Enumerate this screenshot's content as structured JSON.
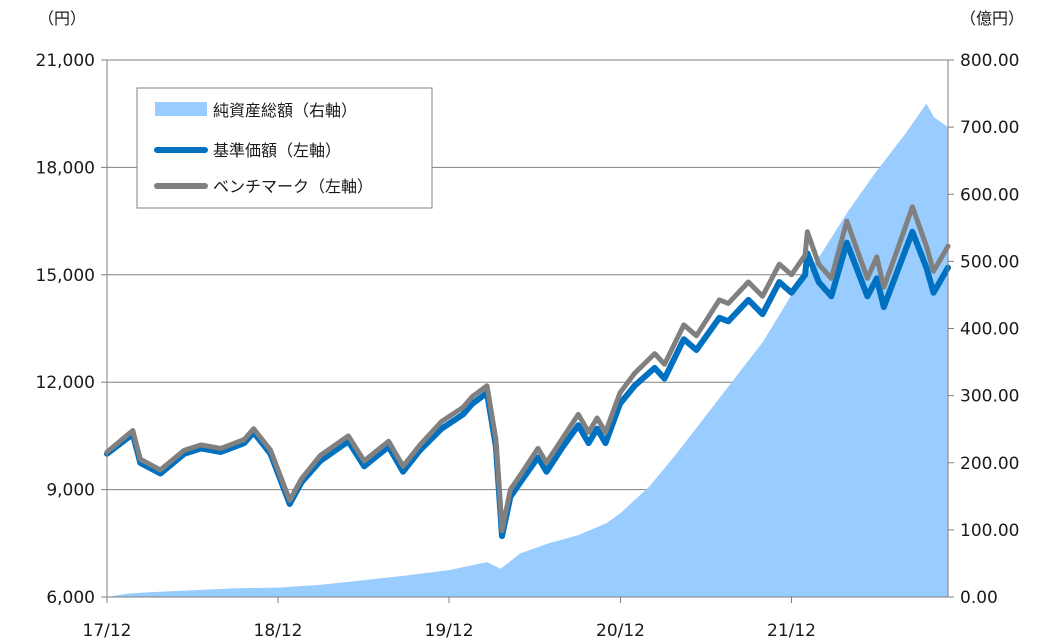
{
  "chart_data": {
    "type": "line",
    "title": "",
    "y_left": {
      "unit_label": "（円）",
      "ylim": [
        6000,
        21000
      ],
      "ticks": [
        6000,
        9000,
        12000,
        15000,
        18000,
        21000
      ],
      "tick_labels": [
        "6,000",
        "9,000",
        "12,000",
        "15,000",
        "18,000",
        "21,000"
      ]
    },
    "y_right": {
      "unit_label": "（億円）",
      "ylim": [
        0,
        800
      ],
      "ticks": [
        0,
        100,
        200,
        300,
        400,
        500,
        600,
        700,
        800
      ],
      "tick_labels": [
        "0.00",
        "100.00",
        "200.00",
        "300.00",
        "400.00",
        "500.00",
        "600.00",
        "700.00",
        "800.00"
      ]
    },
    "x_axis": {
      "start": "2017-12-01",
      "end": "2022-10-31",
      "ticks": [
        "2017-12-01",
        "2018-12-01",
        "2019-12-01",
        "2020-12-01",
        "2021-12-01"
      ],
      "tick_labels": [
        "17/12",
        "18/12",
        "19/12",
        "20/12",
        "21/12"
      ]
    },
    "grid": true,
    "legend_position": "top-left",
    "colors": {
      "net_assets": "#99ccff",
      "nav": "#0070c0",
      "benchmark": "#808080",
      "grid": "#808080",
      "axis": "#808080"
    },
    "series": [
      {
        "name": "純資産総額（右軸）",
        "axis": "right",
        "kind": "area",
        "points": [
          [
            "2017-12-01",
            0
          ],
          [
            "2018-01-15",
            5
          ],
          [
            "2018-03-01",
            7
          ],
          [
            "2018-06-01",
            10
          ],
          [
            "2018-09-01",
            13
          ],
          [
            "2018-12-01",
            14
          ],
          [
            "2019-03-01",
            18
          ],
          [
            "2019-06-01",
            25
          ],
          [
            "2019-09-01",
            32
          ],
          [
            "2019-12-01",
            40
          ],
          [
            "2020-02-20",
            52
          ],
          [
            "2020-03-20",
            42
          ],
          [
            "2020-05-01",
            65
          ],
          [
            "2020-07-01",
            80
          ],
          [
            "2020-09-01",
            92
          ],
          [
            "2020-11-01",
            110
          ],
          [
            "2020-12-01",
            125
          ],
          [
            "2021-02-01",
            165
          ],
          [
            "2021-04-01",
            215
          ],
          [
            "2021-06-01",
            270
          ],
          [
            "2021-08-01",
            325
          ],
          [
            "2021-10-01",
            380
          ],
          [
            "2021-12-01",
            450
          ],
          [
            "2022-02-01",
            510
          ],
          [
            "2022-04-01",
            575
          ],
          [
            "2022-06-01",
            635
          ],
          [
            "2022-08-01",
            690
          ],
          [
            "2022-09-15",
            735
          ],
          [
            "2022-10-01",
            715
          ],
          [
            "2022-10-31",
            700
          ]
        ]
      },
      {
        "name": "基準価額（左軸）",
        "axis": "left",
        "kind": "line",
        "points": [
          [
            "2017-12-01",
            10000
          ],
          [
            "2018-01-25",
            10550
          ],
          [
            "2018-02-10",
            9750
          ],
          [
            "2018-03-25",
            9450
          ],
          [
            "2018-05-15",
            10000
          ],
          [
            "2018-06-20",
            10150
          ],
          [
            "2018-08-01",
            10050
          ],
          [
            "2018-09-20",
            10300
          ],
          [
            "2018-10-10",
            10600
          ],
          [
            "2018-11-15",
            10000
          ],
          [
            "2018-12-26",
            8600
          ],
          [
            "2019-01-20",
            9200
          ],
          [
            "2019-03-01",
            9800
          ],
          [
            "2019-04-30",
            10350
          ],
          [
            "2019-06-03",
            9650
          ],
          [
            "2019-07-25",
            10200
          ],
          [
            "2019-08-25",
            9500
          ],
          [
            "2019-09-30",
            10100
          ],
          [
            "2019-11-15",
            10700
          ],
          [
            "2019-12-31",
            11100
          ],
          [
            "2020-01-20",
            11400
          ],
          [
            "2020-02-20",
            11700
          ],
          [
            "2020-03-10",
            10200
          ],
          [
            "2020-03-23",
            7700
          ],
          [
            "2020-04-10",
            8800
          ],
          [
            "2020-05-01",
            9200
          ],
          [
            "2020-06-08",
            9900
          ],
          [
            "2020-06-26",
            9500
          ],
          [
            "2020-07-31",
            10200
          ],
          [
            "2020-09-02",
            10800
          ],
          [
            "2020-09-24",
            10300
          ],
          [
            "2020-10-12",
            10700
          ],
          [
            "2020-10-30",
            10300
          ],
          [
            "2020-11-30",
            11400
          ],
          [
            "2020-12-31",
            11900
          ],
          [
            "2021-02-12",
            12400
          ],
          [
            "2021-03-05",
            12100
          ],
          [
            "2021-04-15",
            13200
          ],
          [
            "2021-05-12",
            12900
          ],
          [
            "2021-06-30",
            13800
          ],
          [
            "2021-07-19",
            13700
          ],
          [
            "2021-08-31",
            14300
          ],
          [
            "2021-09-30",
            13900
          ],
          [
            "2021-11-05",
            14800
          ],
          [
            "2021-12-01",
            14500
          ],
          [
            "2021-12-30",
            15000
          ],
          [
            "2022-01-04",
            15600
          ],
          [
            "2022-01-28",
            14800
          ],
          [
            "2022-02-24",
            14400
          ],
          [
            "2022-03-29",
            15900
          ],
          [
            "2022-05-12",
            14400
          ],
          [
            "2022-06-01",
            14900
          ],
          [
            "2022-06-16",
            14100
          ],
          [
            "2022-07-15",
            15100
          ],
          [
            "2022-08-16",
            16200
          ],
          [
            "2022-09-15",
            15200
          ],
          [
            "2022-09-30",
            14500
          ],
          [
            "2022-10-31",
            15200
          ]
        ]
      },
      {
        "name": "ベンチマーク（左軸）",
        "axis": "left",
        "kind": "line",
        "points": [
          [
            "2017-12-01",
            10050
          ],
          [
            "2018-01-25",
            10650
          ],
          [
            "2018-02-10",
            9850
          ],
          [
            "2018-03-25",
            9550
          ],
          [
            "2018-05-15",
            10100
          ],
          [
            "2018-06-20",
            10250
          ],
          [
            "2018-08-01",
            10150
          ],
          [
            "2018-09-20",
            10400
          ],
          [
            "2018-10-10",
            10700
          ],
          [
            "2018-11-15",
            10100
          ],
          [
            "2018-12-26",
            8700
          ],
          [
            "2019-01-20",
            9300
          ],
          [
            "2019-03-01",
            9950
          ],
          [
            "2019-04-30",
            10500
          ],
          [
            "2019-06-03",
            9800
          ],
          [
            "2019-07-25",
            10350
          ],
          [
            "2019-08-25",
            9650
          ],
          [
            "2019-09-30",
            10250
          ],
          [
            "2019-11-15",
            10900
          ],
          [
            "2019-12-31",
            11300
          ],
          [
            "2020-01-20",
            11600
          ],
          [
            "2020-02-20",
            11900
          ],
          [
            "2020-03-10",
            10400
          ],
          [
            "2020-03-23",
            7850
          ],
          [
            "2020-04-10",
            9000
          ],
          [
            "2020-05-01",
            9400
          ],
          [
            "2020-06-08",
            10150
          ],
          [
            "2020-06-26",
            9750
          ],
          [
            "2020-07-31",
            10450
          ],
          [
            "2020-09-02",
            11100
          ],
          [
            "2020-09-24",
            10600
          ],
          [
            "2020-10-12",
            11000
          ],
          [
            "2020-10-30",
            10600
          ],
          [
            "2020-11-30",
            11700
          ],
          [
            "2020-12-31",
            12250
          ],
          [
            "2021-02-12",
            12800
          ],
          [
            "2021-03-05",
            12500
          ],
          [
            "2021-04-15",
            13600
          ],
          [
            "2021-05-12",
            13300
          ],
          [
            "2021-06-30",
            14300
          ],
          [
            "2021-07-19",
            14200
          ],
          [
            "2021-08-31",
            14800
          ],
          [
            "2021-09-30",
            14400
          ],
          [
            "2021-11-05",
            15300
          ],
          [
            "2021-12-01",
            15000
          ],
          [
            "2021-12-30",
            15550
          ],
          [
            "2022-01-04",
            16200
          ],
          [
            "2022-01-28",
            15300
          ],
          [
            "2022-02-24",
            14900
          ],
          [
            "2022-03-29",
            16500
          ],
          [
            "2022-05-12",
            14900
          ],
          [
            "2022-06-01",
            15500
          ],
          [
            "2022-06-16",
            14650
          ],
          [
            "2022-07-15",
            15700
          ],
          [
            "2022-08-16",
            16900
          ],
          [
            "2022-09-15",
            15800
          ],
          [
            "2022-09-30",
            15100
          ],
          [
            "2022-10-31",
            15800
          ]
        ]
      }
    ]
  }
}
